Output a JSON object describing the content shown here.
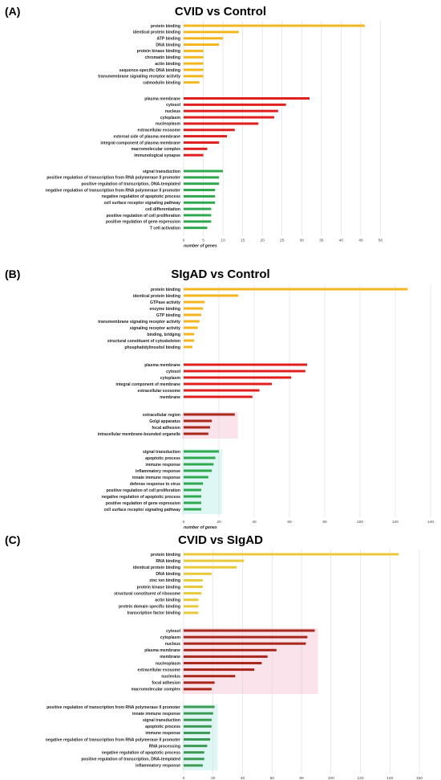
{
  "panels": [
    {
      "label": "(A)",
      "title": "CVID vs Control"
    },
    {
      "label": "(B)",
      "title": "SIgAD vs Control"
    },
    {
      "label": "(C)",
      "title": "CVID vs SIgAD"
    }
  ],
  "colors": {
    "yellow": "#f4b61f",
    "yellow_light": "#e8c93a",
    "red": "#e02020",
    "darkred": "#a8281c",
    "green": "#2fa84f",
    "green_dark": "#3c9a55",
    "pink_shade": "#fbe3ec",
    "cyan_shade": "#dff7f4",
    "grid": "#d9d9d9"
  },
  "chart_data": [
    {
      "type": "bar",
      "orientation": "horizontal",
      "title": "CVID vs Control",
      "xlabel": "number of genes",
      "xlim": [
        0,
        55
      ],
      "xticks": [
        0,
        5,
        10,
        15,
        20,
        25,
        30,
        35,
        40,
        45,
        50
      ],
      "groups": [
        {
          "color": "yellow",
          "categories": [
            "protein binding",
            "identical protein binding",
            "ATP binding",
            "DNA binding",
            "protein kinase binding",
            "chromatin binding",
            "actin binding",
            "sequence-specific DNA binding",
            "transmembrane signaling receptor activity",
            "calmodulin binding"
          ],
          "values": [
            46,
            14,
            10,
            9,
            5,
            5,
            5,
            5,
            5,
            4
          ]
        },
        {
          "color": "red",
          "categories": [
            "plasma membrane",
            "cytosol",
            "nucleus",
            "cytoplasm",
            "nucleoplasm",
            "extracellular exosome",
            "external side of plasma membrane",
            "integral component of plasma membrane",
            "macromolecular complex",
            "immunological synapse"
          ],
          "values": [
            32,
            26,
            24,
            23,
            19,
            13,
            11,
            9,
            6,
            5
          ]
        },
        {
          "color": "green",
          "categories": [
            "signal transduction",
            "positive regulation of transcription from RNA polymerase II promoter",
            "positive regulation of transcription, DNA-templated",
            "negative regulation of transcription from RNA polymerase II promoter",
            "negative regulation of apoptotic process",
            "cell surface receptor signaling pathway",
            "cell differentiation",
            "positive regulation of cell proliferation",
            "positive regulation of gene expression",
            "T cell activation"
          ],
          "values": [
            10,
            9,
            9,
            8,
            8,
            8,
            7,
            7,
            7,
            6
          ]
        }
      ]
    },
    {
      "type": "bar",
      "orientation": "horizontal",
      "title": "SIgAD vs Control",
      "xlabel": "number of genes",
      "xlim": [
        0,
        140
      ],
      "xticks": [
        0,
        20,
        40,
        60,
        80,
        100,
        120,
        140
      ],
      "groups": [
        {
          "color": "yellow",
          "categories": [
            "protein binding",
            "identical protein binding",
            "GTPase activity",
            "enzyme binding",
            "GTP binding",
            "transmembrane signaling receptor activity",
            "signaling receptor activity",
            "binding, bridging",
            "structural constituent of cytoskeleton",
            "phosphatidylinositol binding"
          ],
          "values": [
            127,
            31,
            12,
            11,
            10,
            9,
            8,
            6,
            6,
            5
          ]
        },
        {
          "color": "red",
          "categories": [
            "plasma membrane",
            "cytosol",
            "cytoplasm",
            "integral component of membrane",
            "extracellular exosome",
            "membrane"
          ],
          "values": [
            70,
            69,
            61,
            50,
            43,
            39
          ]
        },
        {
          "color": "darkred",
          "shade": "pink_shade",
          "categories": [
            "extracellular region",
            "Golgi apparatus",
            "focal adhesion",
            "intracellular membrane-bounded organelle"
          ],
          "values": [
            29,
            16,
            15,
            14
          ]
        },
        {
          "color": "green",
          "shade": "cyan_shade",
          "categories": [
            "signal transduction",
            "apoptotic process",
            "immune response",
            "inflammatory response",
            "innate immune response",
            "defense response to virus",
            "positive regulation of cell proliferation",
            "negative regulation of apoptotic process",
            "positive regulation of gene expression",
            "cell surface receptor signaling pathway"
          ],
          "values": [
            20,
            18,
            17,
            16,
            14,
            11,
            10,
            10,
            10,
            10
          ]
        }
      ]
    },
    {
      "type": "bar",
      "orientation": "horizontal",
      "title": "CVID vs SIgAD",
      "xlabel": "number of genes",
      "xlim": [
        0,
        160
      ],
      "xticks": [
        0,
        20,
        40,
        60,
        80,
        100,
        120,
        140,
        160
      ],
      "groups": [
        {
          "color": "yellow_light",
          "categories": [
            "protein binding",
            "RNA binding",
            "identical protein binding",
            "DNA binding",
            "zinc ion binding",
            "protein kinase binding",
            "structural constituent of ribosome",
            "actin binding",
            "protein domain specific binding",
            "transcription factor binding"
          ],
          "values": [
            146,
            41,
            36,
            19,
            13,
            13,
            12,
            10,
            10,
            10
          ]
        },
        {
          "color": "darkred",
          "shade": "pink_shade",
          "categories": [
            "cytosol",
            "cytoplasm",
            "nucleus",
            "plasma membrane",
            "membrane",
            "nucleoplasm",
            "extracellular exosome",
            "nucleolus",
            "focal adhesion",
            "macromolecular complex"
          ],
          "values": [
            89,
            84,
            83,
            63,
            57,
            53,
            48,
            35,
            21,
            19
          ]
        },
        {
          "color": "green_dark",
          "shade": "cyan_shade",
          "categories": [
            "positive regulation of transcription from RNA polymerase II promoter",
            "innate immune response",
            "signal transduction",
            "apoptotic process",
            "immune response",
            "negative regulation of transcription from RNA polymerase II promoter",
            "RNA processing",
            "negative regulation of apoptotic process",
            "positive regulation of transcription, DNA-templated",
            "inflammatory response"
          ],
          "values": [
            21,
            20,
            19,
            19,
            18,
            18,
            16,
            14,
            14,
            13
          ]
        }
      ]
    }
  ]
}
